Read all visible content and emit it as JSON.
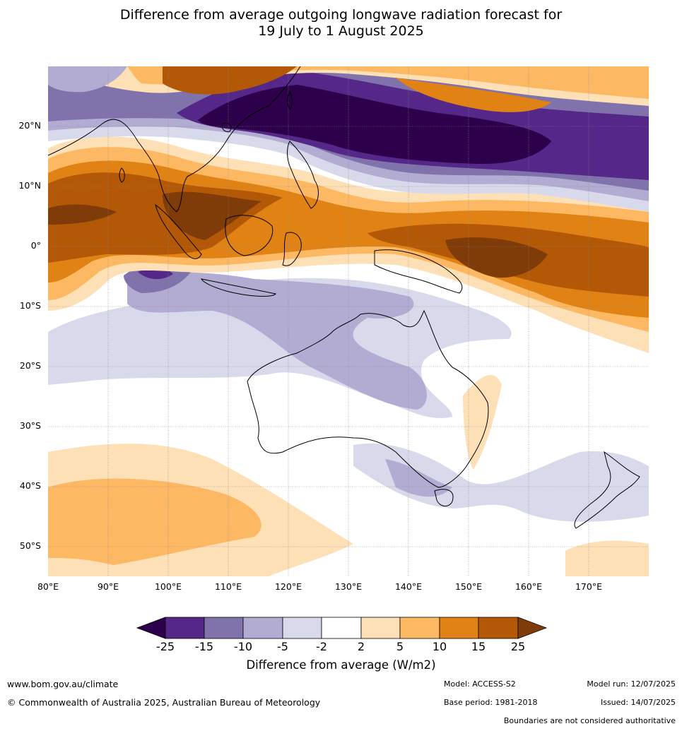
{
  "title": {
    "line1": "Difference from average outgoing longwave radiation forecast for",
    "line2": "19 July to 1 August 2025"
  },
  "map": {
    "lat_labels": [
      "20°N",
      "10°N",
      "0°",
      "10°S",
      "20°S",
      "30°S",
      "40°S",
      "50°S"
    ],
    "lon_labels": [
      "80°E",
      "90°E",
      "100°E",
      "110°E",
      "120°E",
      "130°E",
      "140°E",
      "150°E",
      "160°E",
      "170°E"
    ]
  },
  "colorbar": {
    "colors": [
      "#2d004b",
      "#542788",
      "#8073ac",
      "#b2abd2",
      "#d8daeb",
      "#ffffff",
      "#fee0b6",
      "#fdb863",
      "#e08214",
      "#b35806",
      "#7f3b08"
    ],
    "tick_labels": [
      "-25",
      "-15",
      "-10",
      "-5",
      "-2",
      "2",
      "5",
      "10",
      "15",
      "25"
    ],
    "title": "Difference from average (W/m2)"
  },
  "footer": {
    "url": "www.bom.gov.au/climate",
    "copyright": "© Commonwealth of Australia 2025, Australian Bureau of Meteorology",
    "model": "Model: ACCESS-S2",
    "model_run": "Model run: 12/07/2025",
    "base_period": "Base period: 1981-2018",
    "issued": "Issued: 14/07/2025",
    "boundaries_note": "Boundaries are not considered authoritative"
  }
}
